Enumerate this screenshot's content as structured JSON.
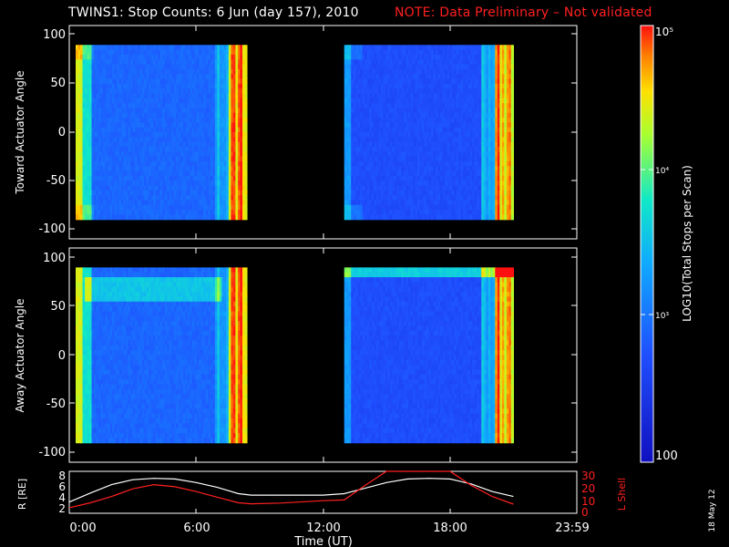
{
  "header": {
    "title": "TWINS1: Stop Counts:  6 Jun (day 157), 2010",
    "note": "NOTE: Data Preliminary – Not validated",
    "note_color": "#ff2020"
  },
  "side_date": "18 May 12",
  "colorbar": {
    "label": "LOG10(Total Stops per Scan)",
    "ticks": [
      "100",
      "10³",
      "10⁴",
      "10⁵"
    ],
    "range": [
      100,
      100000
    ],
    "scale": "log"
  },
  "chart_data": [
    {
      "type": "heatmap",
      "panel": "toward",
      "ylabel": "Toward Actuator Angle",
      "ylim": [
        -110,
        110
      ],
      "yticks": [
        100,
        50,
        0,
        -50,
        -100
      ],
      "xlim": [
        0,
        24
      ],
      "xticks": [
        "0:00",
        "6:00",
        "12:00",
        "18:00",
        "23:59"
      ],
      "data_intervals_hours": [
        [
          0.0,
          8.4
        ],
        [
          13.0,
          21.0
        ]
      ],
      "angle_range": [
        -90,
        90
      ],
      "color_scale": "log"
    },
    {
      "type": "heatmap",
      "panel": "away",
      "ylabel": "Away Actuator Angle",
      "ylim": [
        -110,
        110
      ],
      "yticks": [
        100,
        50,
        0,
        -50,
        -100
      ],
      "xlim": [
        0,
        24
      ],
      "xticks": [
        "0:00",
        "6:00",
        "12:00",
        "18:00",
        "23:59"
      ],
      "data_intervals_hours": [
        [
          0.0,
          8.4
        ],
        [
          13.0,
          21.0
        ]
      ],
      "angle_range": [
        -90,
        90
      ],
      "color_scale": "log"
    },
    {
      "type": "line",
      "panel": "orbit",
      "xlabel": "Time (UT)",
      "xticks": [
        "0:00",
        "6:00",
        "12:00",
        "18:00",
        "23:59"
      ],
      "ylabel_left": "R [RE]",
      "ylabel_right": "L Shell",
      "ylim_left": [
        2,
        8
      ],
      "yticks_left": [
        2,
        4,
        6,
        8
      ],
      "ylim_right": [
        0,
        30
      ],
      "yticks_right": [
        0,
        10,
        20,
        30
      ],
      "series": [
        {
          "axis": "left",
          "color": "#ffffff",
          "points": [
            [
              0,
              3.6
            ],
            [
              1,
              4.9
            ],
            [
              2,
              6.1
            ],
            [
              3,
              6.8
            ],
            [
              4,
              7.0
            ],
            [
              5,
              6.9
            ],
            [
              6,
              6.4
            ],
            [
              7,
              5.7
            ],
            [
              8,
              4.8
            ],
            [
              8.6,
              4.6
            ],
            [
              10,
              4.6
            ],
            [
              12,
              4.6
            ],
            [
              13,
              4.8
            ],
            [
              14,
              5.6
            ],
            [
              15,
              6.4
            ],
            [
              16,
              6.9
            ],
            [
              17,
              7.0
            ],
            [
              18,
              6.9
            ],
            [
              19,
              6.2
            ],
            [
              20,
              5.1
            ],
            [
              21,
              4.4
            ]
          ]
        },
        {
          "axis": "right",
          "color": "#ff2020",
          "points": [
            [
              0,
              4.0
            ],
            [
              1,
              7.5
            ],
            [
              2,
              12.0
            ],
            [
              3,
              17.5
            ],
            [
              4,
              20.5
            ],
            [
              5,
              19.0
            ],
            [
              6,
              15.5
            ],
            [
              7,
              11.5
            ],
            [
              8,
              7.5
            ],
            [
              8.6,
              6.8
            ],
            [
              10,
              7.3
            ],
            [
              12,
              9.0
            ],
            [
              13,
              9.5
            ],
            [
              14,
              20.0
            ],
            [
              15,
              30.0
            ],
            [
              18,
              30.0
            ],
            [
              19,
              20.0
            ],
            [
              20,
              12.0
            ],
            [
              21,
              6.5
            ]
          ]
        }
      ]
    }
  ]
}
